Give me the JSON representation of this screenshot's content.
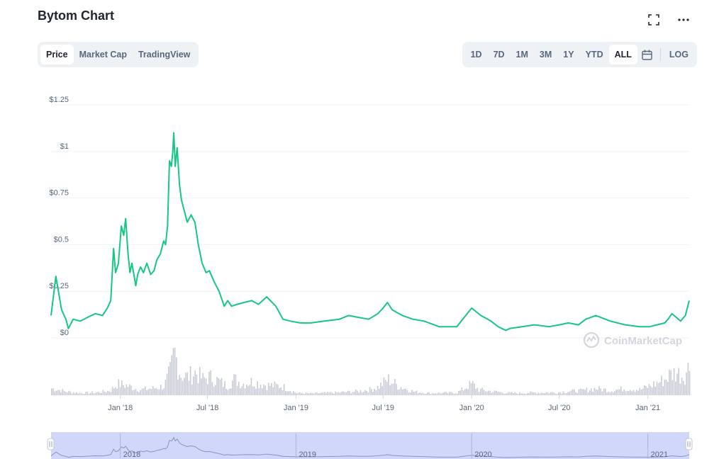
{
  "header": {
    "title": "Bytom Chart",
    "fullscreen_icon": "fullscreen-icon",
    "more_icon": "more-icon"
  },
  "tabs": [
    {
      "label": "Price",
      "active": true
    },
    {
      "label": "Market Cap",
      "active": false
    },
    {
      "label": "TradingView",
      "active": false
    }
  ],
  "ranges": [
    {
      "label": "1D",
      "active": false
    },
    {
      "label": "7D",
      "active": false
    },
    {
      "label": "1M",
      "active": false
    },
    {
      "label": "3M",
      "active": false
    },
    {
      "label": "1Y",
      "active": false
    },
    {
      "label": "YTD",
      "active": false
    },
    {
      "label": "ALL",
      "active": true
    }
  ],
  "calendar_icon": "calendar-icon",
  "log_label": "LOG",
  "watermark": "CoinMarketCap",
  "colors": {
    "line": "#16c784",
    "volume": "#c9ccd6",
    "navigator_fill": "#c8d0f8",
    "grid": "#eff2f5",
    "axis_text": "#58667e"
  },
  "chart_data": {
    "type": "line",
    "series": [
      {
        "x": [
          "2017-08-10",
          "2017-08-20",
          "2017-09-01",
          "2017-09-10",
          "2017-09-15",
          "2017-09-25",
          "2017-10-10",
          "2017-10-25",
          "2017-11-10",
          "2017-11-25",
          "2017-12-05",
          "2017-12-12",
          "2017-12-18",
          "2017-12-22",
          "2017-12-28",
          "2018-01-03",
          "2018-01-08",
          "2018-01-12",
          "2018-01-17",
          "2018-01-21",
          "2018-01-25",
          "2018-02-02",
          "2018-02-06",
          "2018-02-12",
          "2018-02-18",
          "2018-02-25",
          "2018-03-05",
          "2018-03-12",
          "2018-03-18",
          "2018-03-25",
          "2018-04-01",
          "2018-04-05",
          "2018-04-09",
          "2018-04-13",
          "2018-04-17",
          "2018-04-20",
          "2018-04-22",
          "2018-04-25",
          "2018-04-29",
          "2018-05-04",
          "2018-05-08",
          "2018-05-14",
          "2018-05-20",
          "2018-05-28",
          "2018-06-05",
          "2018-06-12",
          "2018-06-20",
          "2018-06-28",
          "2018-07-05",
          "2018-07-15",
          "2018-07-25",
          "2018-08-05",
          "2018-08-12",
          "2018-08-20",
          "2018-09-01",
          "2018-09-15",
          "2018-10-01",
          "2018-10-15",
          "2018-11-01",
          "2018-11-20",
          "2018-12-05",
          "2018-12-20",
          "2019-01-10",
          "2019-02-01",
          "2019-03-01",
          "2019-04-01",
          "2019-04-20",
          "2019-05-10",
          "2019-06-01",
          "2019-06-20",
          "2019-07-01",
          "2019-07-10",
          "2019-07-20",
          "2019-08-10",
          "2019-09-01",
          "2019-09-24",
          "2019-10-15",
          "2019-10-25",
          "2019-11-10",
          "2019-12-01",
          "2020-01-01",
          "2020-01-20",
          "2020-02-10",
          "2020-02-25",
          "2020-03-12",
          "2020-03-20",
          "2020-04-15",
          "2020-05-10",
          "2020-06-10",
          "2020-07-01",
          "2020-07-20",
          "2020-08-10",
          "2020-08-25",
          "2020-09-15",
          "2020-10-15",
          "2020-11-15",
          "2020-12-15",
          "2021-01-05",
          "2021-01-20",
          "2021-02-05",
          "2021-02-12",
          "2021-02-20",
          "2021-03-10",
          "2021-03-20",
          "2021-03-28"
        ],
        "values": [
          0.12,
          0.33,
          0.15,
          0.1,
          0.05,
          0.1,
          0.09,
          0.11,
          0.13,
          0.12,
          0.16,
          0.2,
          0.48,
          0.35,
          0.4,
          0.6,
          0.55,
          0.64,
          0.45,
          0.35,
          0.4,
          0.28,
          0.34,
          0.38,
          0.35,
          0.4,
          0.34,
          0.36,
          0.42,
          0.45,
          0.52,
          0.5,
          0.6,
          0.95,
          0.92,
          1.0,
          1.1,
          0.92,
          1.02,
          0.82,
          0.74,
          0.68,
          0.62,
          0.66,
          0.62,
          0.5,
          0.4,
          0.35,
          0.36,
          0.3,
          0.25,
          0.17,
          0.2,
          0.17,
          0.18,
          0.19,
          0.2,
          0.18,
          0.22,
          0.17,
          0.1,
          0.09,
          0.08,
          0.08,
          0.09,
          0.1,
          0.12,
          0.11,
          0.1,
          0.13,
          0.16,
          0.19,
          0.15,
          0.12,
          0.1,
          0.09,
          0.07,
          0.06,
          0.06,
          0.06,
          0.16,
          0.12,
          0.09,
          0.06,
          0.04,
          0.05,
          0.06,
          0.07,
          0.06,
          0.07,
          0.08,
          0.07,
          0.1,
          0.12,
          0.09,
          0.07,
          0.06,
          0.06,
          0.07,
          0.08,
          0.1,
          0.13,
          0.09,
          0.12,
          0.2
        ]
      }
    ],
    "volume": {
      "x": [
        "2017-08-10",
        "2017-09-10",
        "2017-10-10",
        "2017-11-10",
        "2017-12-10",
        "2017-12-25",
        "2018-01-10",
        "2018-02-10",
        "2018-03-10",
        "2018-04-01",
        "2018-04-15",
        "2018-04-22",
        "2018-05-05",
        "2018-05-20",
        "2018-06-05",
        "2018-06-20",
        "2018-07-05",
        "2018-07-25",
        "2018-08-10",
        "2018-08-25",
        "2018-09-10",
        "2018-10-01",
        "2018-11-01",
        "2018-12-01",
        "2019-01-01",
        "2019-02-01",
        "2019-03-01",
        "2019-04-01",
        "2019-05-01",
        "2019-06-01",
        "2019-06-20",
        "2019-07-10",
        "2019-08-01",
        "2019-09-01",
        "2019-10-01",
        "2019-11-01",
        "2019-12-01",
        "2020-01-01",
        "2020-01-15",
        "2020-02-15",
        "2020-03-15",
        "2020-04-15",
        "2020-05-15",
        "2020-06-15",
        "2020-07-15",
        "2020-08-15",
        "2020-09-15",
        "2020-10-15",
        "2020-11-15",
        "2020-12-15",
        "2021-01-15",
        "2021-02-05",
        "2021-02-15",
        "2021-03-01",
        "2021-03-15",
        "2021-03-28"
      ],
      "values": [
        0.15,
        0.08,
        0.05,
        0.06,
        0.1,
        0.25,
        0.22,
        0.12,
        0.15,
        0.2,
        0.55,
        0.95,
        0.45,
        0.4,
        0.5,
        0.35,
        0.4,
        0.3,
        0.2,
        0.35,
        0.25,
        0.3,
        0.22,
        0.2,
        0.05,
        0.04,
        0.05,
        0.06,
        0.08,
        0.12,
        0.18,
        0.35,
        0.2,
        0.08,
        0.05,
        0.05,
        0.06,
        0.25,
        0.12,
        0.08,
        0.05,
        0.05,
        0.06,
        0.06,
        0.08,
        0.1,
        0.15,
        0.1,
        0.15,
        0.12,
        0.25,
        0.35,
        0.45,
        0.5,
        0.4,
        0.65
      ]
    },
    "x_ticks": [
      {
        "label": "Jan '18",
        "date": "2018-01-01"
      },
      {
        "label": "Jul '18",
        "date": "2018-07-01"
      },
      {
        "label": "Jan '19",
        "date": "2019-01-01"
      },
      {
        "label": "Jul '19",
        "date": "2019-07-01"
      },
      {
        "label": "Jan '20",
        "date": "2020-01-01"
      },
      {
        "label": "Jul '20",
        "date": "2020-07-01"
      },
      {
        "label": "Jan '21",
        "date": "2021-01-01"
      }
    ],
    "y_ticks": [
      {
        "label": "$0",
        "value": 0
      },
      {
        "label": "$0.25",
        "value": 0.25
      },
      {
        "label": "$0.5",
        "value": 0.5
      },
      {
        "label": "$0.75",
        "value": 0.75
      },
      {
        "label": "$1",
        "value": 1
      },
      {
        "label": "$1.25",
        "value": 1.25
      }
    ],
    "navigator_ticks": [
      {
        "label": "2018",
        "date": "2018-01-01"
      },
      {
        "label": "2019",
        "date": "2019-01-01"
      },
      {
        "label": "2020",
        "date": "2020-01-01"
      },
      {
        "label": "2021",
        "date": "2021-01-01"
      }
    ],
    "xlim": [
      "2017-08-10",
      "2021-03-28"
    ],
    "ylim": [
      0,
      1.25
    ],
    "grid": true,
    "xlabel": "",
    "ylabel": ""
  }
}
